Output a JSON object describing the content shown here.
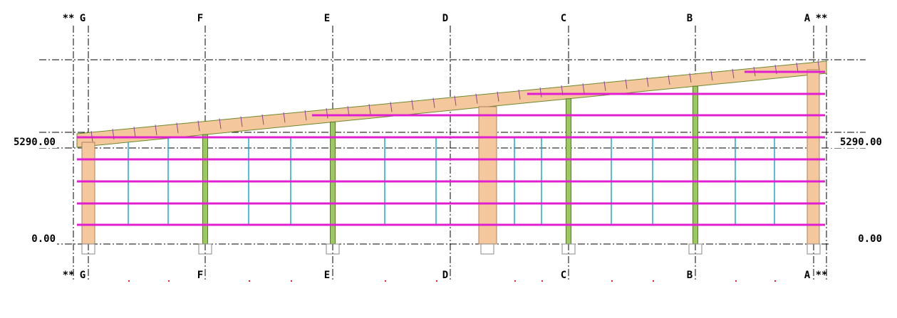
{
  "top_labels": [
    "**",
    "G",
    "F",
    "E",
    "D",
    "C",
    "B",
    "A",
    "**"
  ],
  "bottom_labels": [
    "**",
    "G",
    "F",
    "E",
    "D",
    "C",
    "B",
    "A",
    "**"
  ],
  "left_levels": [
    "5290.00",
    "0.00"
  ],
  "right_levels": [
    "5290.00",
    "0.00"
  ]
}
